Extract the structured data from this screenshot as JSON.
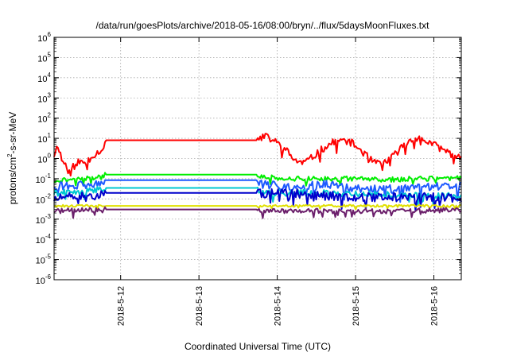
{
  "chart_data": {
    "type": "line",
    "title": "/data/run/goesPlots/archive/2018-05-16/08:00/bryn/../flux/5daysMoonFluxes.txt",
    "xlabel": "Coordinated Universal Time (UTC)",
    "ylabel": {
      "pre": "protons/cm",
      "sup": "2",
      "post": "-s-sr-MeV"
    },
    "yscale": "log",
    "ylim_exp": [
      -6,
      6
    ],
    "y_ticks": [
      {
        "base": "10",
        "exp": "6"
      },
      {
        "base": "10",
        "exp": "5"
      },
      {
        "base": "10",
        "exp": "4"
      },
      {
        "base": "10",
        "exp": "3"
      },
      {
        "base": "10",
        "exp": "2"
      },
      {
        "base": "10",
        "exp": "1"
      },
      {
        "base": "10",
        "exp": "0"
      },
      {
        "base": "10",
        "exp": "-1"
      },
      {
        "base": "10",
        "exp": "-2"
      },
      {
        "base": "10",
        "exp": "-3"
      },
      {
        "base": "10",
        "exp": "-4"
      },
      {
        "base": "10",
        "exp": "-5"
      },
      {
        "base": "10",
        "exp": "-6"
      }
    ],
    "xlim_days": [
      11.15,
      16.35
    ],
    "x_ticks": [
      {
        "day": 12,
        "label": "2018-5-12"
      },
      {
        "day": 13,
        "label": "2018-5-13"
      },
      {
        "day": 14,
        "label": "2018-5-14"
      },
      {
        "day": 15,
        "label": "2018-5-15"
      },
      {
        "day": 16,
        "label": "2018-5-16"
      }
    ],
    "grid": true,
    "series": [
      {
        "color": "#ff0000",
        "noise": 0.18,
        "seed": 11,
        "points": [
          [
            11.15,
            1.5
          ],
          [
            11.2,
            5
          ],
          [
            11.25,
            0.8
          ],
          [
            11.35,
            0.3
          ],
          [
            11.45,
            0.7
          ],
          [
            11.55,
            0.6
          ],
          [
            11.65,
            1.5
          ],
          [
            11.75,
            2.5
          ],
          [
            11.8,
            8
          ],
          [
            13.75,
            8
          ],
          [
            13.8,
            15
          ],
          [
            13.95,
            8
          ],
          [
            14.1,
            3
          ],
          [
            14.2,
            1
          ],
          [
            14.3,
            0.6
          ],
          [
            14.4,
            0.8
          ],
          [
            14.55,
            2.5
          ],
          [
            14.7,
            6
          ],
          [
            14.85,
            8
          ],
          [
            14.95,
            6
          ],
          [
            15.1,
            2
          ],
          [
            15.2,
            0.8
          ],
          [
            15.3,
            0.5
          ],
          [
            15.45,
            1
          ],
          [
            15.6,
            4
          ],
          [
            15.75,
            11
          ],
          [
            15.85,
            9
          ],
          [
            15.95,
            6
          ],
          [
            16.1,
            3
          ],
          [
            16.25,
            1.5
          ],
          [
            16.35,
            1
          ]
        ]
      },
      {
        "color": "#00ee00",
        "noise": 0.12,
        "seed": 21,
        "points": [
          [
            11.15,
            0.08
          ],
          [
            11.35,
            0.09
          ],
          [
            11.55,
            0.1
          ],
          [
            11.75,
            0.12
          ],
          [
            11.8,
            0.16
          ],
          [
            13.75,
            0.16
          ],
          [
            13.8,
            0.12
          ],
          [
            14.2,
            0.1
          ],
          [
            14.6,
            0.1
          ],
          [
            15.0,
            0.1
          ],
          [
            15.4,
            0.09
          ],
          [
            15.8,
            0.1
          ],
          [
            16.1,
            0.1
          ],
          [
            16.35,
            0.12
          ]
        ]
      },
      {
        "color": "#1e5aff",
        "noise": 0.22,
        "seed": 31,
        "points": [
          [
            11.15,
            0.05
          ],
          [
            11.35,
            0.04
          ],
          [
            11.55,
            0.05
          ],
          [
            11.75,
            0.06
          ],
          [
            11.8,
            0.085
          ],
          [
            13.75,
            0.085
          ],
          [
            13.8,
            0.05
          ],
          [
            14.2,
            0.04
          ],
          [
            14.6,
            0.05
          ],
          [
            14.9,
            0.035
          ],
          [
            15.2,
            0.03
          ],
          [
            15.6,
            0.03
          ],
          [
            16.0,
            0.04
          ],
          [
            16.35,
            0.04
          ]
        ]
      },
      {
        "color": "#00c8d2",
        "noise": 0.16,
        "seed": 41,
        "points": [
          [
            11.15,
            0.02
          ],
          [
            11.5,
            0.02
          ],
          [
            11.8,
            0.035
          ],
          [
            13.75,
            0.035
          ],
          [
            13.8,
            0.02
          ],
          [
            14.5,
            0.02
          ],
          [
            15.0,
            0.018
          ],
          [
            15.6,
            0.015
          ],
          [
            16.35,
            0.015
          ]
        ]
      },
      {
        "color": "#0000cc",
        "noise": 0.22,
        "seed": 51,
        "points": [
          [
            11.15,
            0.01
          ],
          [
            11.35,
            0.012
          ],
          [
            11.55,
            0.015
          ],
          [
            11.75,
            0.015
          ],
          [
            11.8,
            0.02
          ],
          [
            13.75,
            0.02
          ],
          [
            13.8,
            0.018
          ],
          [
            14.2,
            0.02
          ],
          [
            14.5,
            0.015
          ],
          [
            14.9,
            0.013
          ],
          [
            15.2,
            0.012
          ],
          [
            15.6,
            0.012
          ],
          [
            16.0,
            0.012
          ],
          [
            16.35,
            0.01
          ]
        ]
      },
      {
        "color": "#e0e000",
        "noise": 0.06,
        "seed": 61,
        "points": [
          [
            11.15,
            0.0045
          ],
          [
            11.8,
            0.0045
          ],
          [
            13.75,
            0.0045
          ],
          [
            16.35,
            0.0045
          ]
        ]
      },
      {
        "color": "#6b1f6b",
        "noise": 0.12,
        "seed": 71,
        "points": [
          [
            11.15,
            0.0025
          ],
          [
            11.8,
            0.003
          ],
          [
            13.75,
            0.003
          ],
          [
            13.8,
            0.0026
          ],
          [
            14.8,
            0.0025
          ],
          [
            15.4,
            0.0025
          ],
          [
            16.35,
            0.0028
          ]
        ]
      }
    ]
  }
}
